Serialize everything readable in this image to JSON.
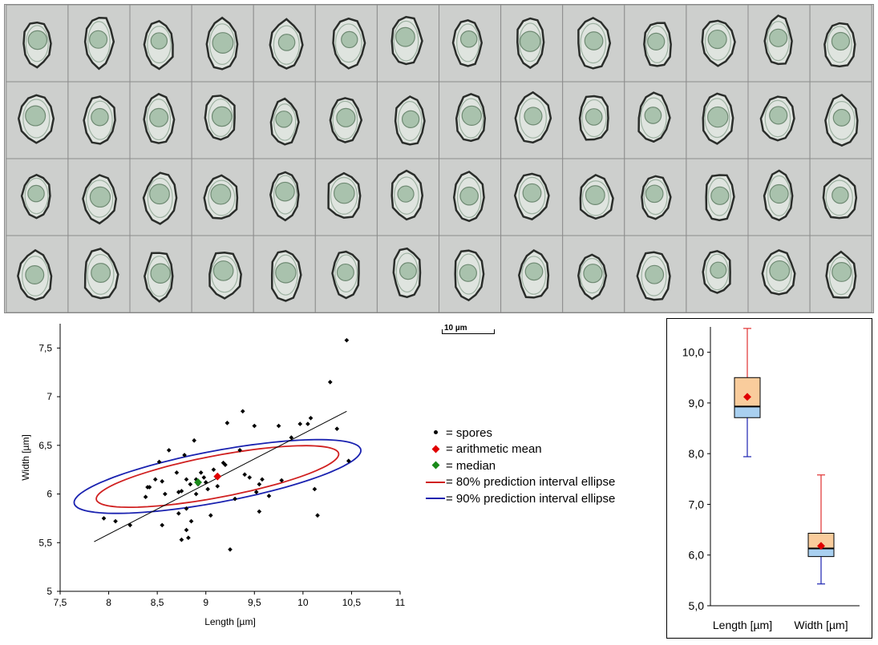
{
  "scale_bar": {
    "label": "10 µm"
  },
  "legend": {
    "items": [
      {
        "symbol": "dot",
        "color": "#000000",
        "text": "= spores"
      },
      {
        "symbol": "diamond",
        "color": "#e00000",
        "text": "= arithmetic mean"
      },
      {
        "symbol": "diamond",
        "color": "#1a8a1a",
        "text": "= median"
      },
      {
        "symbol": "line",
        "color": "#d02020",
        "text": "= 80% prediction interval ellipse"
      },
      {
        "symbol": "line",
        "color": "#1a22b0",
        "text": "= 90% prediction interval ellipse"
      }
    ]
  },
  "chart_data": [
    {
      "type": "scatter",
      "xlabel": "Length [µm]",
      "ylabel": "Width [µm]",
      "xlim": [
        7.5,
        11
      ],
      "ylim": [
        5,
        7.75
      ],
      "xticks": [
        "7,5",
        "8",
        "8,5",
        "9",
        "9,5",
        "10",
        "10,5",
        "11"
      ],
      "xtick_values": [
        7.5,
        8,
        8.5,
        9,
        9.5,
        10,
        10.5,
        11
      ],
      "yticks": [
        "5",
        "5,5",
        "6",
        "6,5",
        "7",
        "7,5"
      ],
      "ytick_values": [
        5,
        5.5,
        6,
        6.5,
        7,
        7.5
      ],
      "series": [
        {
          "name": "spores",
          "points": [
            [
              7.95,
              5.75
            ],
            [
              8.07,
              5.72
            ],
            [
              8.22,
              5.68
            ],
            [
              8.38,
              5.97
            ],
            [
              8.4,
              6.07
            ],
            [
              8.42,
              6.07
            ],
            [
              8.48,
              6.15
            ],
            [
              8.52,
              6.33
            ],
            [
              8.55,
              6.13
            ],
            [
              8.58,
              6.0
            ],
            [
              8.55,
              5.68
            ],
            [
              8.62,
              6.45
            ],
            [
              8.7,
              6.22
            ],
            [
              8.72,
              6.02
            ],
            [
              8.72,
              5.8
            ],
            [
              8.75,
              6.03
            ],
            [
              8.75,
              5.53
            ],
            [
              8.78,
              6.4
            ],
            [
              8.8,
              6.15
            ],
            [
              8.8,
              5.85
            ],
            [
              8.8,
              5.63
            ],
            [
              8.82,
              5.55
            ],
            [
              8.84,
              6.1
            ],
            [
              8.85,
              5.72
            ],
            [
              8.88,
              6.55
            ],
            [
              8.9,
              6.15
            ],
            [
              8.9,
              6.0
            ],
            [
              8.92,
              6.1
            ],
            [
              8.95,
              6.22
            ],
            [
              8.98,
              6.17
            ],
            [
              9.0,
              6.12
            ],
            [
              9.02,
              6.05
            ],
            [
              9.05,
              5.78
            ],
            [
              9.08,
              6.25
            ],
            [
              9.12,
              6.08
            ],
            [
              9.18,
              6.32
            ],
            [
              9.2,
              6.3
            ],
            [
              9.22,
              6.73
            ],
            [
              9.25,
              5.43
            ],
            [
              9.3,
              5.95
            ],
            [
              9.35,
              6.45
            ],
            [
              9.38,
              6.85
            ],
            [
              9.4,
              6.2
            ],
            [
              9.45,
              6.17
            ],
            [
              9.5,
              6.7
            ],
            [
              9.52,
              6.02
            ],
            [
              9.55,
              5.82
            ],
            [
              9.55,
              6.1
            ],
            [
              9.58,
              6.15
            ],
            [
              9.65,
              5.98
            ],
            [
              9.75,
              6.7
            ],
            [
              9.78,
              6.14
            ],
            [
              9.88,
              6.58
            ],
            [
              9.97,
              6.72
            ],
            [
              10.05,
              6.72
            ],
            [
              10.08,
              6.78
            ],
            [
              10.12,
              6.05
            ],
            [
              10.15,
              5.78
            ],
            [
              10.28,
              7.15
            ],
            [
              10.35,
              6.67
            ],
            [
              10.45,
              7.58
            ],
            [
              10.47,
              6.34
            ]
          ],
          "color": "#000000"
        },
        {
          "name": "arithmetic mean",
          "points": [
            [
              9.12,
              6.18
            ]
          ],
          "color": "#e00000"
        },
        {
          "name": "median",
          "points": [
            [
              8.92,
              6.12
            ]
          ],
          "color": "#1a8a1a"
        }
      ],
      "regression_line": {
        "x": [
          7.85,
          10.45
        ],
        "y": [
          5.51,
          6.85
        ],
        "color": "#000000"
      },
      "ellipses": [
        {
          "name": "80% prediction interval ellipse",
          "center": [
            9.12,
            6.18
          ],
          "semi_major": 1.38,
          "semi_minor": 0.47,
          "angle_deg": 27.0,
          "color": "#d02020"
        },
        {
          "name": "90% prediction interval ellipse",
          "center": [
            9.12,
            6.18
          ],
          "semi_major": 1.63,
          "semi_minor": 0.58,
          "angle_deg": 27.0,
          "color": "#1a22b0"
        }
      ],
      "grid": false
    },
    {
      "type": "box",
      "categories": [
        "Length [µm]",
        "Width [µm]"
      ],
      "ylim": [
        5.0,
        10.5
      ],
      "yticks": [
        "5,0",
        "6,0",
        "7,0",
        "8,0",
        "9,0",
        "10,0"
      ],
      "ytick_values": [
        5,
        6,
        7,
        8,
        9,
        10
      ],
      "boxes": [
        {
          "category": "Length [µm]",
          "min": 7.94,
          "q1": 8.71,
          "median": 8.93,
          "q3": 9.5,
          "max": 10.47,
          "mean": 9.12
        },
        {
          "category": "Width [µm]",
          "min": 5.43,
          "q1": 5.97,
          "median": 6.13,
          "q3": 6.43,
          "max": 7.58,
          "mean": 6.18
        }
      ],
      "colors": {
        "upper_box": "#f9cc9c",
        "lower_box": "#a9d0f0",
        "upper_whisker": "#e03030",
        "lower_whisker": "#1a22b0",
        "mean": "#e00000"
      }
    }
  ]
}
